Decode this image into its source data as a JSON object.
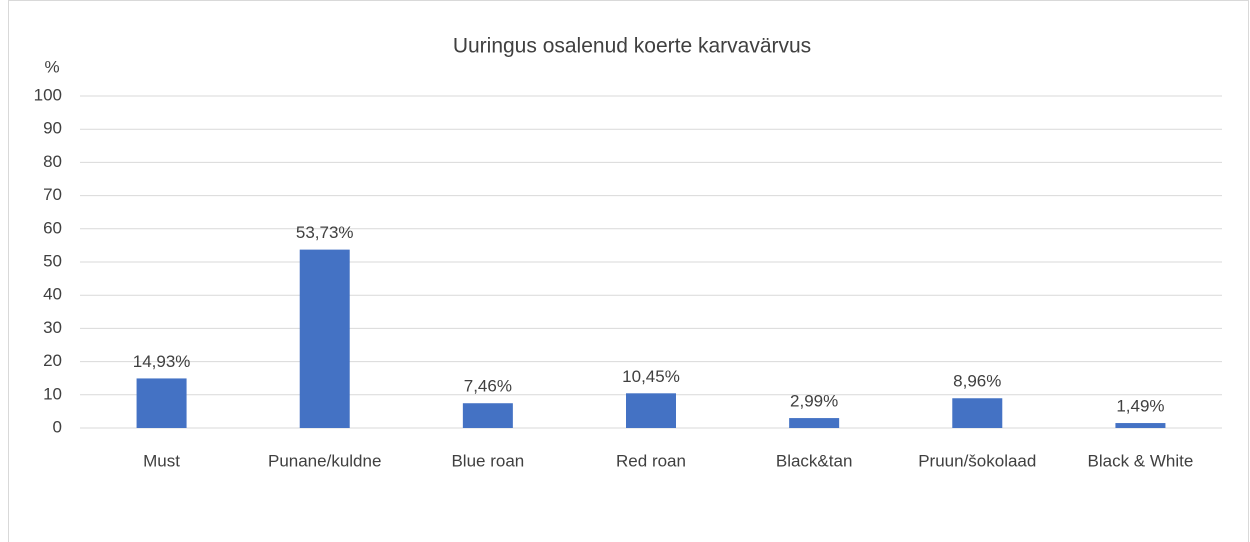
{
  "chart_data": {
    "type": "bar",
    "title": "Uuringus osalenud koerte karvavärvus",
    "y_label": "%",
    "categories": [
      "Must",
      "Punane/kuldne",
      "Blue roan",
      "Red roan",
      "Black&tan",
      "Pruun/šokolaad",
      "Black & White"
    ],
    "values": [
      14.93,
      53.73,
      7.46,
      10.45,
      2.99,
      8.96,
      1.49
    ],
    "value_labels": [
      "14,93%",
      "53,73%",
      "7,46%",
      "10,45%",
      "2,99%",
      "8,96%",
      "1,49%"
    ],
    "color": "#4472c4",
    "ylim": [
      0,
      100
    ],
    "yticks": [
      0,
      10,
      20,
      30,
      40,
      50,
      60,
      70,
      80,
      90,
      100
    ],
    "grid": true
  }
}
